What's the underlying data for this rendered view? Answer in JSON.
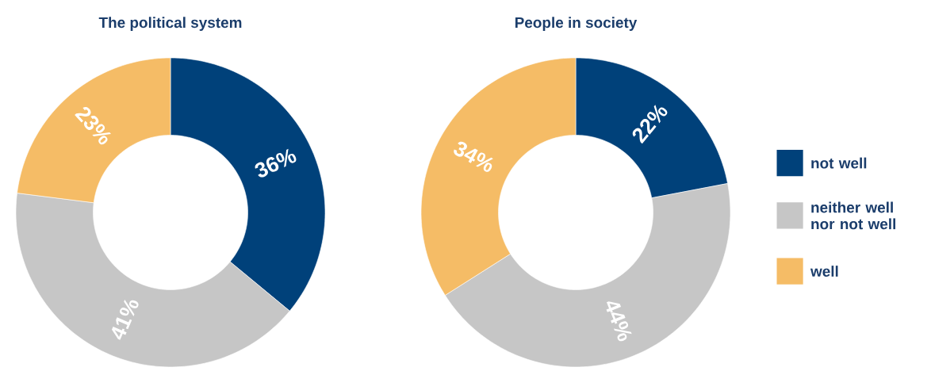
{
  "chart_data": [
    {
      "type": "donut",
      "title": "The political system",
      "categories": [
        null,
        null,
        null
      ],
      "values": [
        36,
        41,
        23
      ],
      "colors": [
        "#00417a",
        "#c6c6c6",
        "#f5bc66"
      ],
      "value_labels": [
        "36%",
        "41%",
        "23%"
      ],
      "legend": false
    },
    {
      "type": "donut",
      "title": "People in society",
      "categories": [
        "not well",
        "neither well nor not well",
        "well"
      ],
      "values": [
        22,
        44,
        34
      ],
      "colors": [
        "#00417a",
        "#c6c6c6",
        "#f5bc66"
      ],
      "value_labels": [
        "22%",
        "44%",
        "34%"
      ],
      "legend": "right"
    }
  ]
}
